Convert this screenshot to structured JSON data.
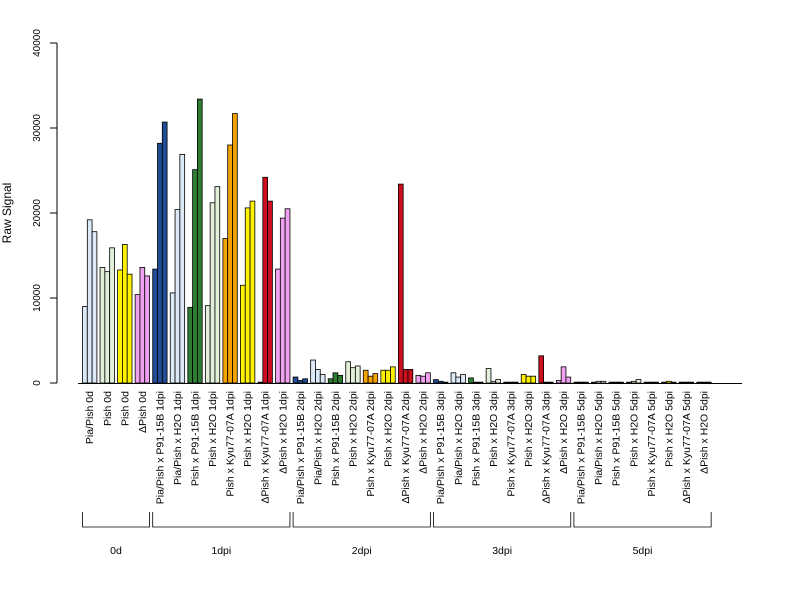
{
  "chart_data": {
    "type": "bar",
    "ylabel": "Raw Signal",
    "ylim": [
      0,
      40000
    ],
    "yticks": [
      "0",
      "10000",
      "20000",
      "30000",
      "40000"
    ],
    "grid": false,
    "colors": {
      "Pia_Pish_light": "#dce9f7",
      "Pia_Pish": "#1f4e96",
      "green_light": "#e2efd9",
      "green": "#2e7d32",
      "yellow": "#fff200",
      "orange": "#f5a300",
      "red": "#cc0f1f",
      "pink": "#f0a0f0"
    },
    "groups": [
      {
        "label": "0d",
        "conditions": [
          {
            "label": "Pia/Pish 0d",
            "color": "#dce9f7",
            "values": [
              9000,
              19200,
              17800
            ]
          },
          {
            "label": "Pish 0d",
            "color": "#e2efd9",
            "values": [
              13600,
              13100,
              15900
            ]
          },
          {
            "label": "Pish 0d",
            "color": "#fff200",
            "values": [
              13300,
              16300,
              12800
            ]
          },
          {
            "label": "ΔPish 0d",
            "color": "#f0a0f0",
            "values": [
              10400,
              13600,
              12600
            ]
          }
        ]
      },
      {
        "label": "1dpi",
        "conditions": [
          {
            "label": "Pia/Pish x P91-15B 1dpi",
            "color": "#1f4e96",
            "values": [
              13400,
              28200,
              30700
            ]
          },
          {
            "label": "Pia/Pish x H2O 1dpi",
            "color": "#dce9f7",
            "values": [
              10600,
              20400,
              26900
            ]
          },
          {
            "label": "Pish x P91-15B 1dpi",
            "color": "#2e7d32",
            "values": [
              8900,
              25100,
              33400
            ]
          },
          {
            "label": "Pish x H2O 1dpi",
            "color": "#e2efd9",
            "values": [
              9100,
              21200,
              23100
            ]
          },
          {
            "label": "Pish x Kyu77-07A 1dpi",
            "color": "#f5a300",
            "values": [
              17000,
              28000,
              31700
            ]
          },
          {
            "label": "Pish x H2O 1dpi",
            "color": "#fff200",
            "values": [
              11500,
              20600,
              21400
            ]
          },
          {
            "label": "ΔPish x Kyu77-07A 1dpi",
            "color": "#cc0f1f",
            "values": [
              100,
              24200,
              21400
            ]
          },
          {
            "label": "ΔPish x H2O 1dpi",
            "color": "#f0a0f0",
            "values": [
              13400,
              19400,
              20500
            ]
          }
        ]
      },
      {
        "label": "2dpi",
        "conditions": [
          {
            "label": "Pia/Pish x P91-15B 2dpi",
            "color": "#1f4e96",
            "values": [
              700,
              300,
              500
            ]
          },
          {
            "label": "Pia/Pish x H2O 2dpi",
            "color": "#dce9f7",
            "values": [
              2700,
              1600,
              1000
            ]
          },
          {
            "label": "Pish x P91-15B 2dpi",
            "color": "#2e7d32",
            "values": [
              500,
              1200,
              900
            ]
          },
          {
            "label": "Pish x H2O 2dpi",
            "color": "#e2efd9",
            "values": [
              2500,
              1800,
              2000
            ]
          },
          {
            "label": "Pish x Kyu77-07A 2dpi",
            "color": "#f5a300",
            "values": [
              1500,
              800,
              1100
            ]
          },
          {
            "label": "Pish x H2O 2dpi",
            "color": "#fff200",
            "values": [
              1500,
              1500,
              1900
            ]
          },
          {
            "label": "ΔPish x Kyu77-07A 2dpi",
            "color": "#cc0f1f",
            "values": [
              23400,
              1600,
              1600
            ]
          },
          {
            "label": "ΔPish x H2O 2dpi",
            "color": "#f0a0f0",
            "values": [
              900,
              800,
              1200
            ]
          }
        ]
      },
      {
        "label": "3dpi",
        "conditions": [
          {
            "label": "Pia/Pish x P91-15B 3dpi",
            "color": "#1f4e96",
            "values": [
              400,
              200,
              100
            ]
          },
          {
            "label": "Pia/Pish x H2O 3dpi",
            "color": "#dce9f7",
            "values": [
              1200,
              700,
              1000
            ]
          },
          {
            "label": "Pish x P91-15B 3dpi",
            "color": "#2e7d32",
            "values": [
              600,
              100,
              100
            ]
          },
          {
            "label": "Pish x H2O 3dpi",
            "color": "#e2efd9",
            "values": [
              1700,
              200,
              400
            ]
          },
          {
            "label": "Pish x Kyu77-07A 3dpi",
            "color": "#f5a300",
            "values": [
              100,
              100,
              100
            ]
          },
          {
            "label": "Pish x H2O 3dpi",
            "color": "#fff200",
            "values": [
              1000,
              800,
              800
            ]
          },
          {
            "label": "ΔPish x Kyu77-07A 3dpi",
            "color": "#cc0f1f",
            "values": [
              3200,
              100,
              100
            ]
          },
          {
            "label": "ΔPish x H2O 3dpi",
            "color": "#f0a0f0",
            "values": [
              300,
              1900,
              700
            ]
          }
        ]
      },
      {
        "label": "5dpi",
        "conditions": [
          {
            "label": "Pia/Pish x P91-15B 5dpi",
            "color": "#1f4e96",
            "values": [
              100,
              100,
              100
            ]
          },
          {
            "label": "Pia/Pish x H2O 5dpi",
            "color": "#dce9f7",
            "values": [
              100,
              200,
              200
            ]
          },
          {
            "label": "Pish x P91-15B 5dpi",
            "color": "#2e7d32",
            "values": [
              100,
              100,
              100
            ]
          },
          {
            "label": "Pish x H2O 5dpi",
            "color": "#e2efd9",
            "values": [
              100,
              200,
              400
            ]
          },
          {
            "label": "Pish x Kyu77-07A 5dpi",
            "color": "#f5a300",
            "values": [
              100,
              100,
              100
            ]
          },
          {
            "label": "Pish x H2O 5dpi",
            "color": "#fff200",
            "values": [
              100,
              200,
              100
            ]
          },
          {
            "label": "ΔPish x Kyu77-07A 5dpi",
            "color": "#cc0f1f",
            "values": [
              100,
              100,
              100
            ]
          },
          {
            "label": "ΔPish x H2O 5dpi",
            "color": "#f0a0f0",
            "values": [
              100,
              100,
              100
            ]
          }
        ]
      }
    ]
  }
}
